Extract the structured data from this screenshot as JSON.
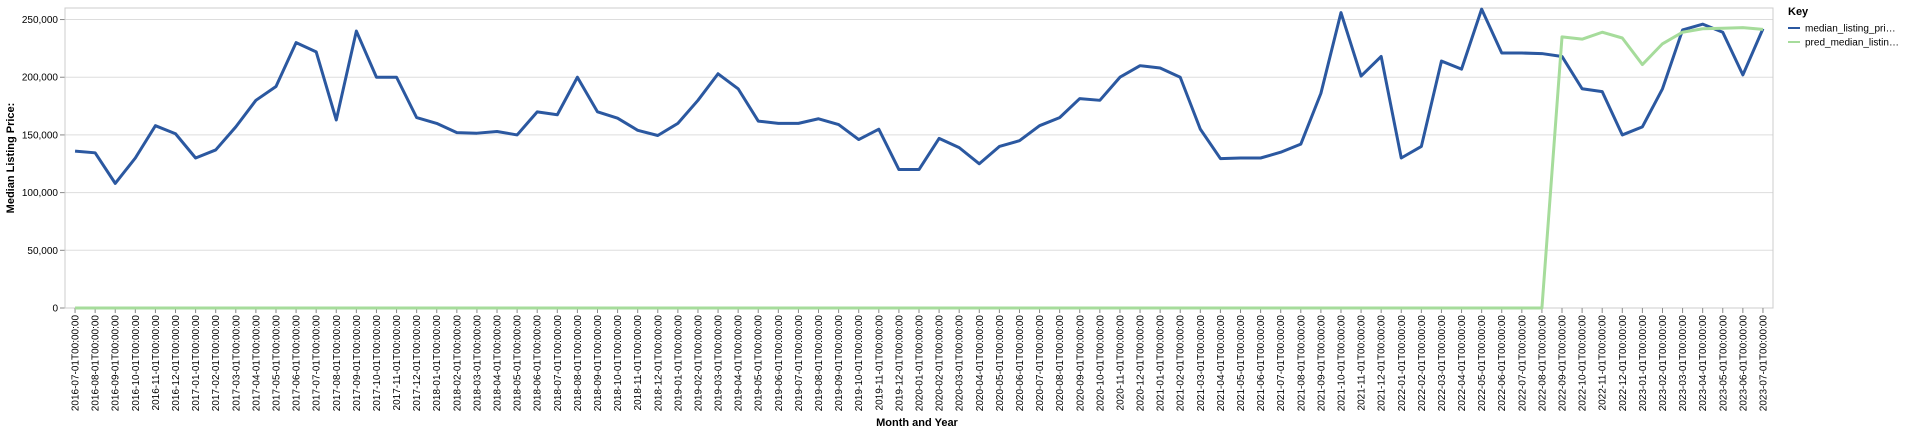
{
  "chart_data": {
    "type": "line",
    "x_label": "Month and Year",
    "y_label": "Median Listing Price:",
    "legend_title": "Key",
    "legend_position": "right",
    "grid": true,
    "categories": [
      "2016-07-01T00:00:00",
      "2016-08-01T00:00:00",
      "2016-09-01T00:00:00",
      "2016-10-01T00:00:00",
      "2016-11-01T00:00:00",
      "2016-12-01T00:00:00",
      "2017-01-01T00:00:00",
      "2017-02-01T00:00:00",
      "2017-03-01T00:00:00",
      "2017-04-01T00:00:00",
      "2017-05-01T00:00:00",
      "2017-06-01T00:00:00",
      "2017-07-01T00:00:00",
      "2017-08-01T00:00:00",
      "2017-09-01T00:00:00",
      "2017-10-01T00:00:00",
      "2017-11-01T00:00:00",
      "2017-12-01T00:00:00",
      "2018-01-01T00:00:00",
      "2018-02-01T00:00:00",
      "2018-03-01T00:00:00",
      "2018-04-01T00:00:00",
      "2018-05-01T00:00:00",
      "2018-06-01T00:00:00",
      "2018-07-01T00:00:00",
      "2018-08-01T00:00:00",
      "2018-09-01T00:00:00",
      "2018-10-01T00:00:00",
      "2018-11-01T00:00:00",
      "2018-12-01T00:00:00",
      "2019-01-01T00:00:00",
      "2019-02-01T00:00:00",
      "2019-03-01T00:00:00",
      "2019-04-01T00:00:00",
      "2019-05-01T00:00:00",
      "2019-06-01T00:00:00",
      "2019-07-01T00:00:00",
      "2019-08-01T00:00:00",
      "2019-09-01T00:00:00",
      "2019-10-01T00:00:00",
      "2019-11-01T00:00:00",
      "2019-12-01T00:00:00",
      "2020-01-01T00:00:00",
      "2020-02-01T00:00:00",
      "2020-03-01T00:00:00",
      "2020-04-01T00:00:00",
      "2020-05-01T00:00:00",
      "2020-06-01T00:00:00",
      "2020-07-01T00:00:00",
      "2020-08-01T00:00:00",
      "2020-09-01T00:00:00",
      "2020-10-01T00:00:00",
      "2020-11-01T00:00:00",
      "2020-12-01T00:00:00",
      "2021-01-01T00:00:00",
      "2021-02-01T00:00:00",
      "2021-03-01T00:00:00",
      "2021-04-01T00:00:00",
      "2021-05-01T00:00:00",
      "2021-06-01T00:00:00",
      "2021-07-01T00:00:00",
      "2021-08-01T00:00:00",
      "2021-09-01T00:00:00",
      "2021-10-01T00:00:00",
      "2021-11-01T00:00:00",
      "2021-12-01T00:00:00",
      "2022-01-01T00:00:00",
      "2022-02-01T00:00:00",
      "2022-03-01T00:00:00",
      "2022-04-01T00:00:00",
      "2022-05-01T00:00:00",
      "2022-06-01T00:00:00",
      "2022-07-01T00:00:00",
      "2022-08-01T00:00:00",
      "2022-09-01T00:00:00",
      "2022-10-01T00:00:00",
      "2022-11-01T00:00:00",
      "2022-12-01T00:00:00",
      "2023-01-01T00:00:00",
      "2023-02-01T00:00:00",
      "2023-03-01T00:00:00",
      "2023-04-01T00:00:00",
      "2023-05-01T00:00:00",
      "2023-06-01T00:00:00",
      "2023-07-01T00:00:00"
    ],
    "series": [
      {
        "name": "median_listing_pri…",
        "color": "#2b58a0",
        "values": [
          136000,
          134500,
          108000,
          130000,
          158000,
          151000,
          130000,
          137000,
          157000,
          180000,
          192000,
          230000,
          222000,
          163000,
          240000,
          200000,
          200000,
          165000,
          160000,
          152000,
          151500,
          153000,
          150000,
          170000,
          167500,
          200000,
          170000,
          164500,
          154000,
          149500,
          160000,
          180000,
          203000,
          190000,
          162000,
          160000,
          160000,
          164000,
          159000,
          146000,
          155000,
          120000,
          120000,
          147000,
          139000,
          125000,
          140000,
          145000,
          158000,
          165000,
          181500,
          180000,
          200000,
          210000,
          208000,
          200000,
          155000,
          129500,
          130000,
          130000,
          135000,
          142000,
          186000,
          256000,
          201000,
          218000,
          130000,
          140000,
          214000,
          207000,
          259000,
          221000,
          221000,
          220500,
          218000,
          190000,
          187500,
          150000,
          157000,
          190000,
          241000,
          246000,
          239000,
          202000,
          242000
        ]
      },
      {
        "name": "pred_median_listin…",
        "color": "#a6dc9b",
        "values": [
          0,
          0,
          0,
          0,
          0,
          0,
          0,
          0,
          0,
          0,
          0,
          0,
          0,
          0,
          0,
          0,
          0,
          0,
          0,
          0,
          0,
          0,
          0,
          0,
          0,
          0,
          0,
          0,
          0,
          0,
          0,
          0,
          0,
          0,
          0,
          0,
          0,
          0,
          0,
          0,
          0,
          0,
          0,
          0,
          0,
          0,
          0,
          0,
          0,
          0,
          0,
          0,
          0,
          0,
          0,
          0,
          0,
          0,
          0,
          0,
          0,
          0,
          0,
          0,
          0,
          0,
          0,
          0,
          0,
          0,
          0,
          0,
          0,
          0,
          235000,
          233000,
          239000,
          234000,
          211000,
          229000,
          239000,
          242000,
          242500,
          243000,
          241500
        ]
      }
    ],
    "ylim": [
      0,
      260000
    ],
    "yticks": [
      0,
      {
        "value": 50000,
        "label": "50,000"
      },
      {
        "value": 100000,
        "label": "100,000"
      },
      {
        "value": 150000,
        "label": "150,000"
      },
      {
        "value": 200000,
        "label": "200,000"
      },
      {
        "value": 250000,
        "label": "250,000"
      }
    ]
  }
}
